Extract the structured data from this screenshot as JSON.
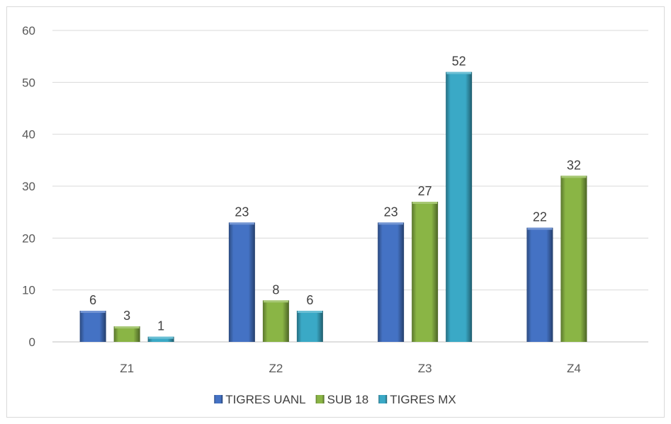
{
  "chart_data": {
    "type": "bar",
    "categories": [
      "Z1",
      "Z2",
      "Z3",
      "Z4"
    ],
    "series": [
      {
        "name": "TIGRES UANL",
        "values": [
          6,
          23,
          23,
          22
        ],
        "color": "#4472c4"
      },
      {
        "name": "SUB 18",
        "values": [
          3,
          8,
          27,
          32
        ],
        "color": "#8ab545"
      },
      {
        "name": "TIGRES MX",
        "values": [
          1,
          6,
          52,
          null
        ],
        "color": "#3aa9c6"
      }
    ],
    "yticks": [
      "0",
      "10",
      "20",
      "30",
      "40",
      "50",
      "60"
    ],
    "ylim": [
      0,
      60
    ],
    "grid": true,
    "legend_position": "bottom"
  }
}
